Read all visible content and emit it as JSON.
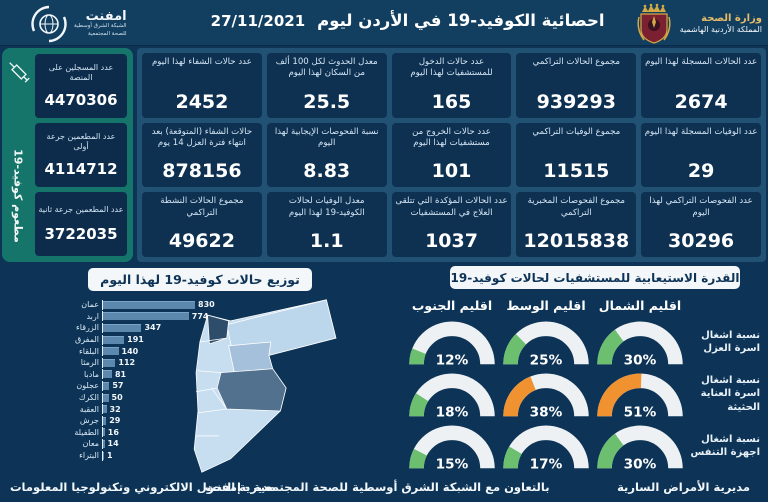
{
  "header": {
    "title": "احصائية الكوفيد-19 في الأردن ليوم",
    "date": "27/11/2021",
    "ministry": {
      "line1": "وزارة الصحة",
      "line2": "المملكة الأردنية الهاشمية"
    },
    "emphnet": {
      "name": "امفنت",
      "sub1": "الشبكة الشرق أوسطية",
      "sub2": "للصحة المجتمعية"
    }
  },
  "vaccination": {
    "vertical_label": "مطعوم كوفيد-19",
    "cards": [
      {
        "label": "عدد المسجلين على المنصة",
        "value": "4470306"
      },
      {
        "label": "عدد المطعمين جرعة أولى",
        "value": "4114712"
      },
      {
        "label": "عدد المطعمين جرعة ثانية",
        "value": "3722035"
      }
    ]
  },
  "stats": [
    {
      "label": "عدد الحالات المسجلة لهذا اليوم",
      "value": "2674"
    },
    {
      "label": "مجموع الحالات التراكمي",
      "value": "939293"
    },
    {
      "label": "عدد حالات الدخول للمستشفيات لهذا اليوم",
      "value": "165"
    },
    {
      "label": "معدل الحدوث لكل 100 ألف من السكان لهذا اليوم",
      "value": "25.5"
    },
    {
      "label": "عدد حالات الشفاء لهذا اليوم",
      "value": "2452"
    },
    {
      "label": "عدد الوفيات المسجلة لهذا اليوم",
      "value": "29"
    },
    {
      "label": "مجموع الوفيات التراكمي",
      "value": "11515"
    },
    {
      "label": "عدد حالات الخروج من مستشفيات لهذا اليوم",
      "value": "101"
    },
    {
      "label": "نسبة الفحوصات الإيجابية لهذا اليوم",
      "value": "8.83"
    },
    {
      "label": "حالات الشفاء (المتوقعة) بعد انتهاء فترة العزل 14 يوم",
      "value": "878156"
    },
    {
      "label": "عدد الفحوصات التراكمي لهذا اليوم",
      "value": "30296"
    },
    {
      "label": "مجموع الفحوصات المخبرية التراكمي",
      "value": "12015838"
    },
    {
      "label": "عدد الحالات المؤكدة التي تتلقى العلاج في المستشفيات",
      "value": "1037"
    },
    {
      "label": "معدل الوفيات لحالات الكوفيد-19 لهذا اليوم",
      "value": "1.1"
    },
    {
      "label": "مجموع الحالات النشطة التراكمي",
      "value": "49622"
    }
  ],
  "chart_data": [
    {
      "type": "bar",
      "title": "توزيع حالات كوفيد-19 لهذا اليوم",
      "orientation": "horizontal",
      "categories": [
        "عمان",
        "اربد",
        "الزرقاء",
        "المفرق",
        "البلقاء",
        "الرمثا",
        "مادبا",
        "عجلون",
        "الكرك",
        "العقبة",
        "جرش",
        "الطفيلة",
        "معان",
        "البتراء"
      ],
      "values": [
        830,
        774,
        347,
        191,
        140,
        112,
        81,
        57,
        50,
        32,
        29,
        16,
        14,
        1
      ],
      "xlim": [
        0,
        830
      ],
      "legend": "none",
      "grid": false
    },
    {
      "type": "gauge-grid",
      "title": "القدرة الاستيعابية للمستشفيات لحالات كوفيد-19",
      "columns": [
        "اقليم الشمال",
        "اقليم الوسط",
        "اقليم الجنوب"
      ],
      "rows": [
        {
          "label": "نسبة اشغال اسرة العزل",
          "values": [
            30,
            25,
            12
          ],
          "colors": [
            "green",
            "green",
            "green"
          ]
        },
        {
          "label": "نسبة اشغال اسرة العناية الحثيثة",
          "values": [
            51,
            38,
            18
          ],
          "colors": [
            "orange",
            "orange",
            "green"
          ]
        },
        {
          "label": "نسبة اشغال اجهزة التنفس",
          "values": [
            30,
            17,
            15
          ],
          "colors": [
            "green",
            "green",
            "green"
          ]
        }
      ],
      "value_format": "percent"
    }
  ],
  "footer": {
    "right": "مديرية الأمراض السارية",
    "center": "بالتعاون مع الشبكة الشرق أوسطية للصحة المجتمعية - إمفنت",
    "left": "مديرية التحول الالكتروني وتكنولوجيا المعلومات"
  },
  "theme": {
    "page_bg": "#0d3456",
    "card_bg": "#0e3051",
    "panel_backdrop": "#215173",
    "vaccine_green": "#15756a",
    "bar_color": "#5d88ae",
    "gauge_green": "#6cbf6f",
    "gauge_orange": "#f0922f",
    "gauge_track": "#edf1f4",
    "map_light": "#c7ddf0",
    "map_dark": "#2e4d6b",
    "map_medium": "#a4c0da",
    "map_slate": "#52718f"
  }
}
